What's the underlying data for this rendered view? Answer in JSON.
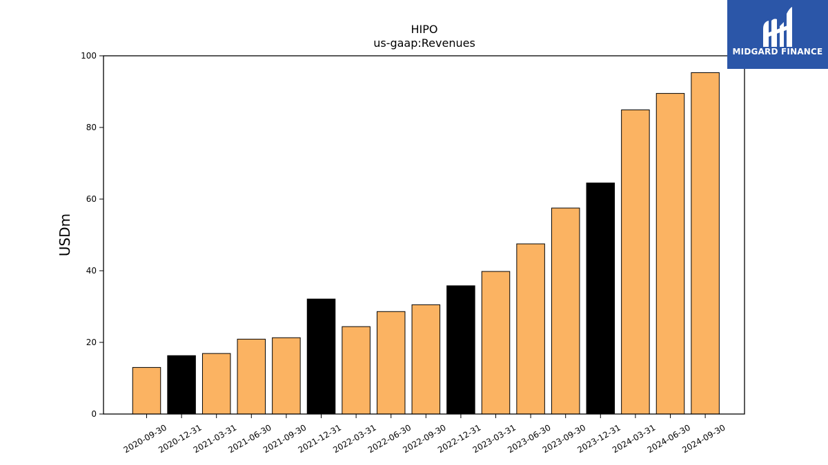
{
  "chart_data": {
    "type": "bar",
    "title": "HIPO",
    "subtitle": "us-gaap:Revenues",
    "xlabel": "",
    "ylabel": "USDm",
    "ylim": [
      0,
      100
    ],
    "yticks": [
      0,
      20,
      40,
      60,
      80,
      100
    ],
    "grid": false,
    "categories": [
      "2020-09-30",
      "2020-12-31",
      "2021-03-31",
      "2021-06-30",
      "2021-09-30",
      "2021-12-31",
      "2022-03-31",
      "2022-06-30",
      "2022-09-30",
      "2022-12-31",
      "2023-03-31",
      "2023-06-30",
      "2023-09-30",
      "2023-12-31",
      "2024-03-31",
      "2024-06-30",
      "2024-09-30"
    ],
    "values": [
      13.0,
      16.3,
      16.9,
      20.9,
      21.3,
      32.1,
      24.4,
      28.6,
      30.5,
      35.8,
      39.8,
      47.5,
      57.5,
      64.5,
      84.9,
      89.5,
      95.3
    ],
    "colors": {
      "quarter": "#fbb362",
      "year_end": "#000000",
      "edge": "#000000"
    },
    "bar_color_keys": [
      "quarter",
      "year_end",
      "quarter",
      "quarter",
      "quarter",
      "year_end",
      "quarter",
      "quarter",
      "quarter",
      "year_end",
      "quarter",
      "quarter",
      "quarter",
      "year_end",
      "quarter",
      "quarter",
      "quarter"
    ]
  },
  "logo": {
    "text": "MIDGARD FINANCE",
    "background": "#2b56a8",
    "icon": "midgard-logo-icon"
  }
}
